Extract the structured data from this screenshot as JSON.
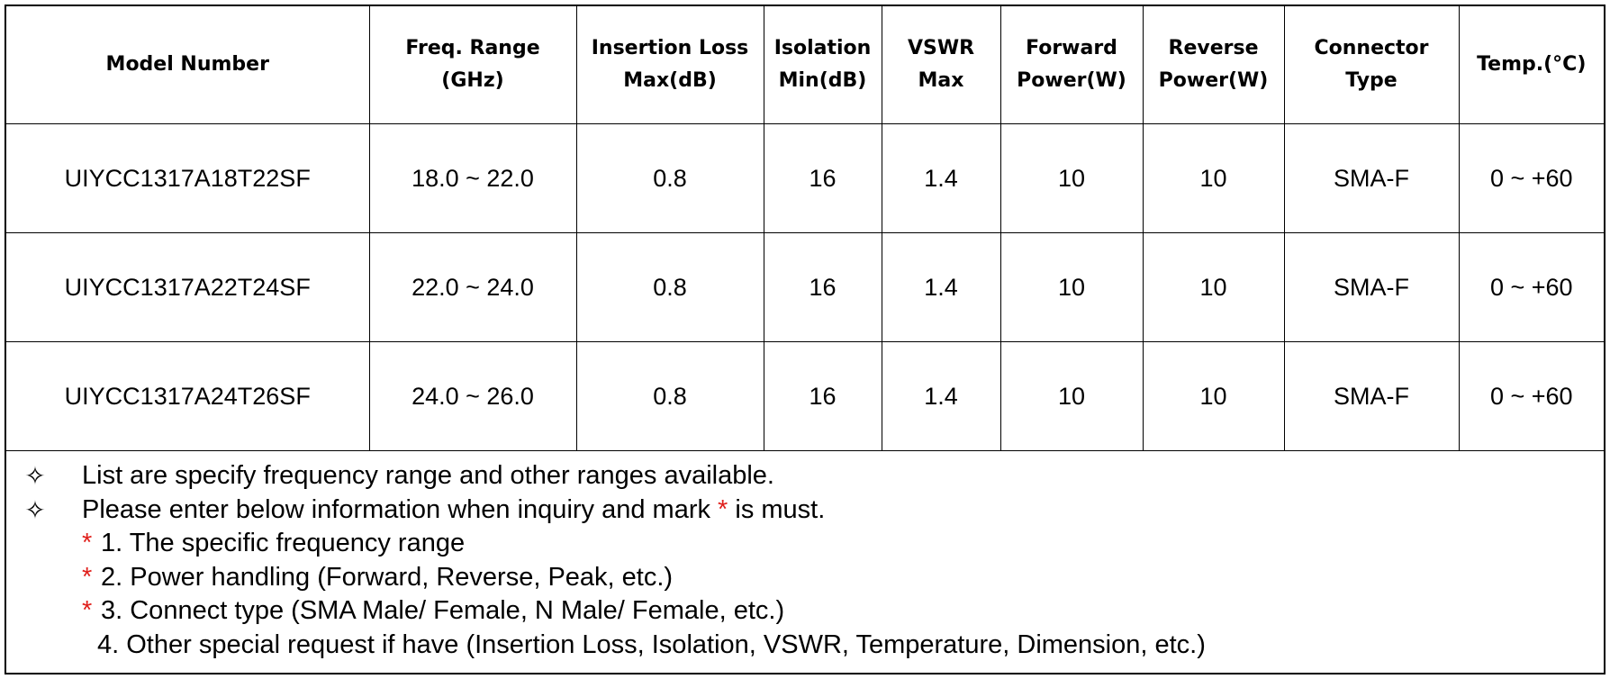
{
  "table": {
    "headers": [
      [
        "Model Number"
      ],
      [
        "Freq. Range",
        "(GHz)"
      ],
      [
        "Insertion Loss",
        "Max(dB)"
      ],
      [
        "Isolation",
        "Min(dB)"
      ],
      [
        "VSWR",
        "Max"
      ],
      [
        "Forward",
        "Power(W)"
      ],
      [
        "Reverse",
        "Power(W)"
      ],
      [
        "Connector",
        "Type"
      ],
      [
        "Temp.(°C)"
      ]
    ],
    "rows": [
      [
        "UIYCC1317A18T22SF",
        "18.0 ~ 22.0",
        "0.8",
        "16",
        "1.4",
        "10",
        "10",
        "SMA-F",
        "0 ~ +60"
      ],
      [
        "UIYCC1317A22T24SF",
        "22.0 ~ 24.0",
        "0.8",
        "16",
        "1.4",
        "10",
        "10",
        "SMA-F",
        "0 ~ +60"
      ],
      [
        "UIYCC1317A24T26SF",
        "24.0 ~ 26.0",
        "0.8",
        "16",
        "1.4",
        "10",
        "10",
        "SMA-F",
        "0 ~ +60"
      ]
    ]
  },
  "notes": {
    "bullet_icon": "white-four-pointed-star-icon",
    "line1": "List are specify frequency range and other ranges available.",
    "line2_before": "Please enter below information when inquiry and mark ",
    "star": "*",
    "line2_after": " is must.",
    "star_color": "#e0201c",
    "items": [
      {
        "required": true,
        "text": "1. The specific frequency range"
      },
      {
        "required": true,
        "text": "2. Power handling (Forward, Reverse, Peak, etc.)"
      },
      {
        "required": true,
        "text": "3. Connect type (SMA Male/ Female, N Male/ Female, etc.)"
      },
      {
        "required": false,
        "text": "4. Other special request if have (Insertion Loss, Isolation, VSWR, Temperature, Dimension, etc.)"
      }
    ]
  }
}
